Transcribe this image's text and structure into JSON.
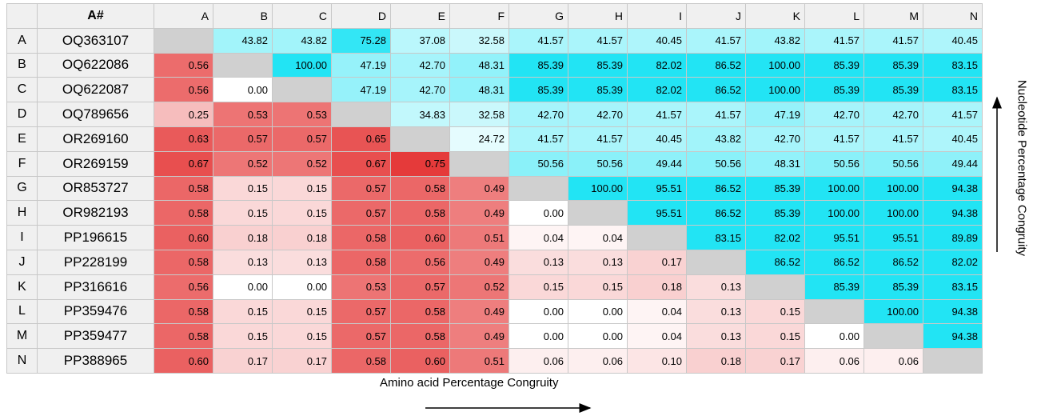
{
  "table": {
    "columns": [
      "A#",
      "A",
      "B",
      "C",
      "D",
      "E",
      "F",
      "G",
      "H",
      "I",
      "J",
      "K",
      "L",
      "M",
      "N"
    ],
    "rows": [
      {
        "label": "A",
        "accession": "OQ363107",
        "cells": [
          null,
          "43.82",
          "43.82",
          "75.28",
          "37.08",
          "32.58",
          "41.57",
          "41.57",
          "40.45",
          "41.57",
          "43.82",
          "41.57",
          "41.57",
          "40.45"
        ]
      },
      {
        "label": "B",
        "accession": "OQ622086",
        "cells": [
          "0.56",
          null,
          "100.00",
          "47.19",
          "42.70",
          "48.31",
          "85.39",
          "85.39",
          "82.02",
          "86.52",
          "100.00",
          "85.39",
          "85.39",
          "83.15"
        ]
      },
      {
        "label": "C",
        "accession": "OQ622087",
        "cells": [
          "0.56",
          "0.00",
          null,
          "47.19",
          "42.70",
          "48.31",
          "85.39",
          "85.39",
          "82.02",
          "86.52",
          "100.00",
          "85.39",
          "85.39",
          "83.15"
        ]
      },
      {
        "label": "D",
        "accession": "OQ789656",
        "cells": [
          "0.25",
          "0.53",
          "0.53",
          null,
          "34.83",
          "32.58",
          "42.70",
          "42.70",
          "41.57",
          "41.57",
          "47.19",
          "42.70",
          "42.70",
          "41.57"
        ]
      },
      {
        "label": "E",
        "accession": "OR269160",
        "cells": [
          "0.63",
          "0.57",
          "0.57",
          "0.65",
          null,
          "24.72",
          "41.57",
          "41.57",
          "40.45",
          "43.82",
          "42.70",
          "41.57",
          "41.57",
          "40.45"
        ]
      },
      {
        "label": "F",
        "accession": "OR269159",
        "cells": [
          "0.67",
          "0.52",
          "0.52",
          "0.67",
          "0.75",
          null,
          "50.56",
          "50.56",
          "49.44",
          "50.56",
          "48.31",
          "50.56",
          "50.56",
          "49.44"
        ]
      },
      {
        "label": "G",
        "accession": "OR853727",
        "cells": [
          "0.58",
          "0.15",
          "0.15",
          "0.57",
          "0.58",
          "0.49",
          null,
          "100.00",
          "95.51",
          "86.52",
          "85.39",
          "100.00",
          "100.00",
          "94.38"
        ]
      },
      {
        "label": "H",
        "accession": "OR982193",
        "cells": [
          "0.58",
          "0.15",
          "0.15",
          "0.57",
          "0.58",
          "0.49",
          "0.00",
          null,
          "95.51",
          "86.52",
          "85.39",
          "100.00",
          "100.00",
          "94.38"
        ]
      },
      {
        "label": "I",
        "accession": "PP196615",
        "cells": [
          "0.60",
          "0.18",
          "0.18",
          "0.58",
          "0.60",
          "0.51",
          "0.04",
          "0.04",
          null,
          "83.15",
          "82.02",
          "95.51",
          "95.51",
          "89.89"
        ]
      },
      {
        "label": "J",
        "accession": "PP228199",
        "cells": [
          "0.58",
          "0.13",
          "0.13",
          "0.58",
          "0.56",
          "0.49",
          "0.13",
          "0.13",
          "0.17",
          null,
          "86.52",
          "86.52",
          "86.52",
          "82.02"
        ]
      },
      {
        "label": "K",
        "accession": "PP316616",
        "cells": [
          "0.56",
          "0.00",
          "0.00",
          "0.53",
          "0.57",
          "0.52",
          "0.15",
          "0.15",
          "0.18",
          "0.13",
          null,
          "85.39",
          "85.39",
          "83.15"
        ]
      },
      {
        "label": "L",
        "accession": "PP359476",
        "cells": [
          "0.58",
          "0.15",
          "0.15",
          "0.57",
          "0.58",
          "0.49",
          "0.00",
          "0.00",
          "0.04",
          "0.13",
          "0.15",
          null,
          "100.00",
          "94.38"
        ]
      },
      {
        "label": "M",
        "accession": "PP359477",
        "cells": [
          "0.58",
          "0.15",
          "0.15",
          "0.57",
          "0.58",
          "0.49",
          "0.00",
          "0.00",
          "0.04",
          "0.13",
          "0.15",
          "0.00",
          null,
          "94.38"
        ]
      },
      {
        "label": "N",
        "accession": "PP388965",
        "cells": [
          "0.60",
          "0.17",
          "0.17",
          "0.58",
          "0.60",
          "0.51",
          "0.06",
          "0.06",
          "0.10",
          "0.18",
          "0.17",
          "0.06",
          "0.06",
          null
        ]
      }
    ]
  },
  "x_label": "Amino acid Percentage Congruity",
  "y_label": "Nucleotide Percentage Congruity"
}
